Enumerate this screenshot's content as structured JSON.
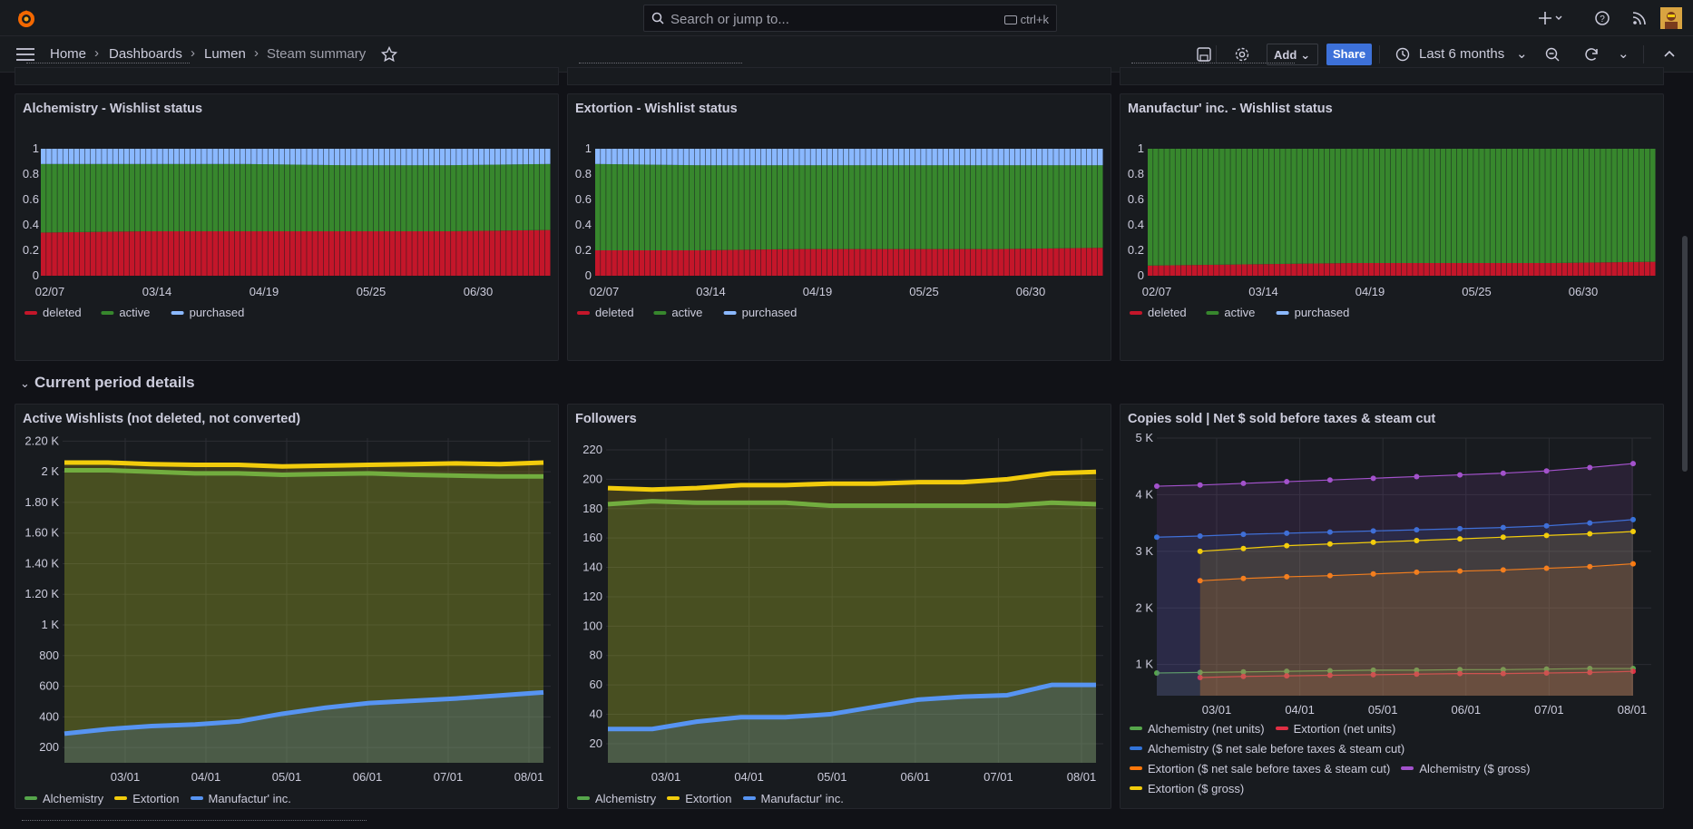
{
  "search": {
    "placeholder": "Search or jump to...",
    "shortcut": "ctrl+k"
  },
  "breadcrumb": [
    "Home",
    "Dashboards",
    "Lumen",
    "Steam summary"
  ],
  "toolbar": {
    "add_label": "Add",
    "share_label": "Share",
    "time_range": "Last 6 months"
  },
  "row_title": "Current period details",
  "colors": {
    "deleted": "#c4162a",
    "active": "#37872d",
    "purchased": "#8ab8ff",
    "green": "#56a64b",
    "yellow": "#f2cc0c",
    "blue": "#5794f2",
    "red": "#e02f44",
    "orange": "#ff780a",
    "purple": "#a352cc",
    "dark_blue": "#3274d9"
  },
  "chart_data": [
    {
      "type": "area",
      "title": "Alchemistry - Wishlist status",
      "stacked": true,
      "x": [
        "02/07",
        "03/14",
        "04/19",
        "05/25",
        "06/30",
        "08/01"
      ],
      "series": [
        {
          "name": "deleted",
          "values": [
            0.34,
            0.35,
            0.35,
            0.35,
            0.35,
            0.36
          ]
        },
        {
          "name": "active",
          "values": [
            0.54,
            0.53,
            0.53,
            0.52,
            0.52,
            0.52
          ]
        },
        {
          "name": "purchased",
          "values": [
            0.12,
            0.12,
            0.12,
            0.13,
            0.13,
            0.12
          ]
        }
      ],
      "yticks": [
        "0",
        "0.2",
        "0.4",
        "0.6",
        "0.8",
        "1"
      ],
      "xticks": [
        "02/07",
        "03/14",
        "04/19",
        "05/25",
        "06/30"
      ],
      "ylim": [
        0,
        1
      ]
    },
    {
      "type": "area",
      "title": "Extortion - Wishlist status",
      "stacked": true,
      "x": [
        "02/07",
        "03/14",
        "04/19",
        "05/25",
        "06/30",
        "08/01"
      ],
      "series": [
        {
          "name": "deleted",
          "values": [
            0.2,
            0.2,
            0.21,
            0.21,
            0.21,
            0.22
          ]
        },
        {
          "name": "active",
          "values": [
            0.68,
            0.67,
            0.66,
            0.66,
            0.66,
            0.65
          ]
        },
        {
          "name": "purchased",
          "values": [
            0.12,
            0.13,
            0.13,
            0.13,
            0.13,
            0.13
          ]
        }
      ],
      "yticks": [
        "0",
        "0.2",
        "0.4",
        "0.6",
        "0.8",
        "1"
      ],
      "xticks": [
        "02/07",
        "03/14",
        "04/19",
        "05/25",
        "06/30"
      ],
      "ylim": [
        0,
        1
      ]
    },
    {
      "type": "area",
      "title": "Manufactur' inc. - Wishlist status",
      "stacked": true,
      "x": [
        "02/07",
        "03/14",
        "04/19",
        "05/25",
        "06/30",
        "08/01"
      ],
      "series": [
        {
          "name": "deleted",
          "values": [
            0.08,
            0.09,
            0.1,
            0.1,
            0.1,
            0.11
          ]
        },
        {
          "name": "active",
          "values": [
            0.92,
            0.91,
            0.9,
            0.9,
            0.9,
            0.89
          ]
        },
        {
          "name": "purchased",
          "values": [
            0,
            0,
            0,
            0,
            0,
            0
          ]
        }
      ],
      "yticks": [
        "0",
        "0.2",
        "0.4",
        "0.6",
        "0.8",
        "1"
      ],
      "xticks": [
        "02/07",
        "03/14",
        "04/19",
        "05/25",
        "06/30"
      ],
      "ylim": [
        0,
        1
      ]
    },
    {
      "type": "line",
      "title": "Active Wishlists (not deleted, not converted)",
      "x": [
        "02/07",
        "03/01",
        "03/15",
        "04/01",
        "04/15",
        "05/01",
        "05/15",
        "06/01",
        "06/15",
        "07/01",
        "07/15",
        "08/01"
      ],
      "series": [
        {
          "name": "Alchemistry",
          "values": [
            2010,
            2010,
            2000,
            1990,
            1990,
            1980,
            1985,
            1990,
            1980,
            1975,
            1970,
            1970
          ]
        },
        {
          "name": "Extortion",
          "values": [
            2060,
            2060,
            2050,
            2045,
            2045,
            2035,
            2040,
            2045,
            2050,
            2055,
            2050,
            2060
          ]
        },
        {
          "name": "Manufactur' inc.",
          "values": [
            290,
            320,
            340,
            350,
            370,
            420,
            460,
            490,
            505,
            520,
            540,
            560
          ]
        }
      ],
      "yticks": [
        "200",
        "400",
        "600",
        "800",
        "1 K",
        "1.20 K",
        "1.40 K",
        "1.60 K",
        "1.80 K",
        "2 K",
        "2.20 K"
      ],
      "xticks": [
        "03/01",
        "04/01",
        "05/01",
        "06/01",
        "07/01",
        "08/01"
      ],
      "ylim": [
        100,
        2220
      ]
    },
    {
      "type": "line",
      "title": "Followers",
      "x": [
        "02/07",
        "03/01",
        "03/15",
        "04/01",
        "04/15",
        "05/01",
        "05/15",
        "06/01",
        "06/15",
        "07/01",
        "07/15",
        "08/01"
      ],
      "series": [
        {
          "name": "Alchemistry",
          "values": [
            183,
            185,
            184,
            184,
            184,
            182,
            182,
            182,
            182,
            182,
            184,
            183
          ]
        },
        {
          "name": "Extortion",
          "values": [
            194,
            193,
            194,
            196,
            196,
            197,
            197,
            198,
            198,
            200,
            204,
            205
          ]
        },
        {
          "name": "Manufactur' inc.",
          "values": [
            30,
            30,
            35,
            38,
            38,
            40,
            45,
            50,
            52,
            53,
            60,
            60
          ]
        }
      ],
      "yticks": [
        "20",
        "40",
        "60",
        "80",
        "100",
        "120",
        "140",
        "160",
        "180",
        "200",
        "220"
      ],
      "xticks": [
        "03/01",
        "04/01",
        "05/01",
        "06/01",
        "07/01",
        "08/01"
      ],
      "ylim": [
        7,
        228
      ]
    },
    {
      "type": "line",
      "title": "Copies sold | Net $ sold before taxes & steam cut",
      "x": [
        "02/10",
        "03/01",
        "03/15",
        "04/01",
        "04/15",
        "05/01",
        "05/15",
        "06/01",
        "06/15",
        "07/01",
        "07/15",
        "08/01"
      ],
      "series": [
        {
          "name": "Alchemistry (net units)",
          "values": [
            850,
            860,
            870,
            880,
            890,
            900,
            900,
            910,
            910,
            920,
            930,
            930
          ]
        },
        {
          "name": "Extortion (net units)",
          "values": [
            null,
            770,
            790,
            800,
            810,
            820,
            830,
            840,
            840,
            850,
            860,
            880
          ]
        },
        {
          "name": "Alchemistry ($ net sale before taxes & steam cut)",
          "values": [
            3250,
            3270,
            3300,
            3320,
            3340,
            3360,
            3380,
            3400,
            3420,
            3450,
            3500,
            3560
          ]
        },
        {
          "name": "Extortion ($ net sale before taxes & steam cut)",
          "values": [
            null,
            2480,
            2520,
            2550,
            2570,
            2600,
            2630,
            2650,
            2670,
            2700,
            2730,
            2780
          ]
        },
        {
          "name": "Alchemistry ($ gross)",
          "values": [
            4150,
            4170,
            4200,
            4230,
            4260,
            4290,
            4320,
            4350,
            4380,
            4420,
            4480,
            4550
          ]
        },
        {
          "name": "Extortion ($ gross)",
          "values": [
            null,
            3000,
            3050,
            3100,
            3130,
            3160,
            3190,
            3220,
            3250,
            3280,
            3310,
            3350
          ]
        }
      ],
      "yticks": [
        "1 K",
        "2 K",
        "3 K",
        "4 K",
        "5 K"
      ],
      "xticks": [
        "03/01",
        "04/01",
        "05/01",
        "06/01",
        "07/01",
        "08/01"
      ],
      "ylim": [
        450,
        5000
      ]
    }
  ]
}
